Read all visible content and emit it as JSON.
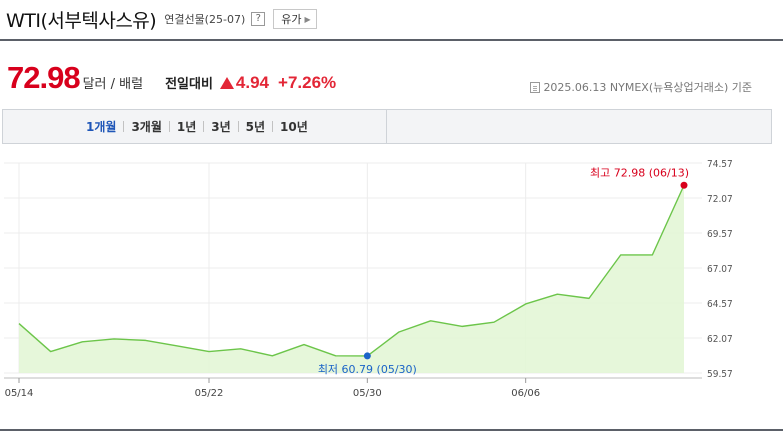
{
  "header": {
    "title": "WTI(서부텍사스유)",
    "subtitle": "연결선물(25-07)",
    "help_label": "?",
    "related_label": "유가"
  },
  "quote": {
    "price": "72.98",
    "unit": "달러 / 배럴",
    "compare_label": "전일대비",
    "change": "4.94",
    "change_pct": "+7.26%",
    "direction_icon": "up-triangle-icon",
    "up_color": "#e32636",
    "reference": "2025.06.13 NYMEX(뉴욕상업거래소) 기준"
  },
  "tabs": [
    {
      "label": "1개월",
      "active": true
    },
    {
      "label": "3개월",
      "active": false
    },
    {
      "label": "1년",
      "active": false
    },
    {
      "label": "3년",
      "active": false
    },
    {
      "label": "5년",
      "active": false
    },
    {
      "label": "10년",
      "active": false
    }
  ],
  "chart_data": {
    "type": "area",
    "title": "",
    "xlabel": "",
    "ylabel": "",
    "y_ticks": [
      "74.57",
      "72.07",
      "69.57",
      "67.07",
      "64.57",
      "62.07",
      "59.57"
    ],
    "ylim": [
      59.57,
      74.57
    ],
    "x_tick_labels": [
      {
        "index": 0,
        "label": "05/14"
      },
      {
        "index": 6,
        "label": "05/22"
      },
      {
        "index": 11,
        "label": "05/30"
      },
      {
        "index": 16,
        "label": "06/06"
      }
    ],
    "series": [
      {
        "values": [
          63.1,
          61.1,
          61.8,
          62.0,
          61.9,
          61.5,
          61.1,
          61.3,
          60.8,
          61.6,
          60.8,
          60.79,
          62.5,
          63.3,
          62.9,
          63.2,
          64.5,
          65.2,
          64.9,
          68.0,
          68.0,
          72.98
        ],
        "line_color": "#6cc54a",
        "fill_color": "#e3f6d6"
      }
    ],
    "max_annotation": {
      "index": 21,
      "label": "최고 72.98 (06/13)",
      "color": "#d8001c"
    },
    "min_annotation": {
      "index": 11,
      "label": "최저 60.79 (05/30)",
      "color": "#1b64c8"
    },
    "grid": true
  }
}
